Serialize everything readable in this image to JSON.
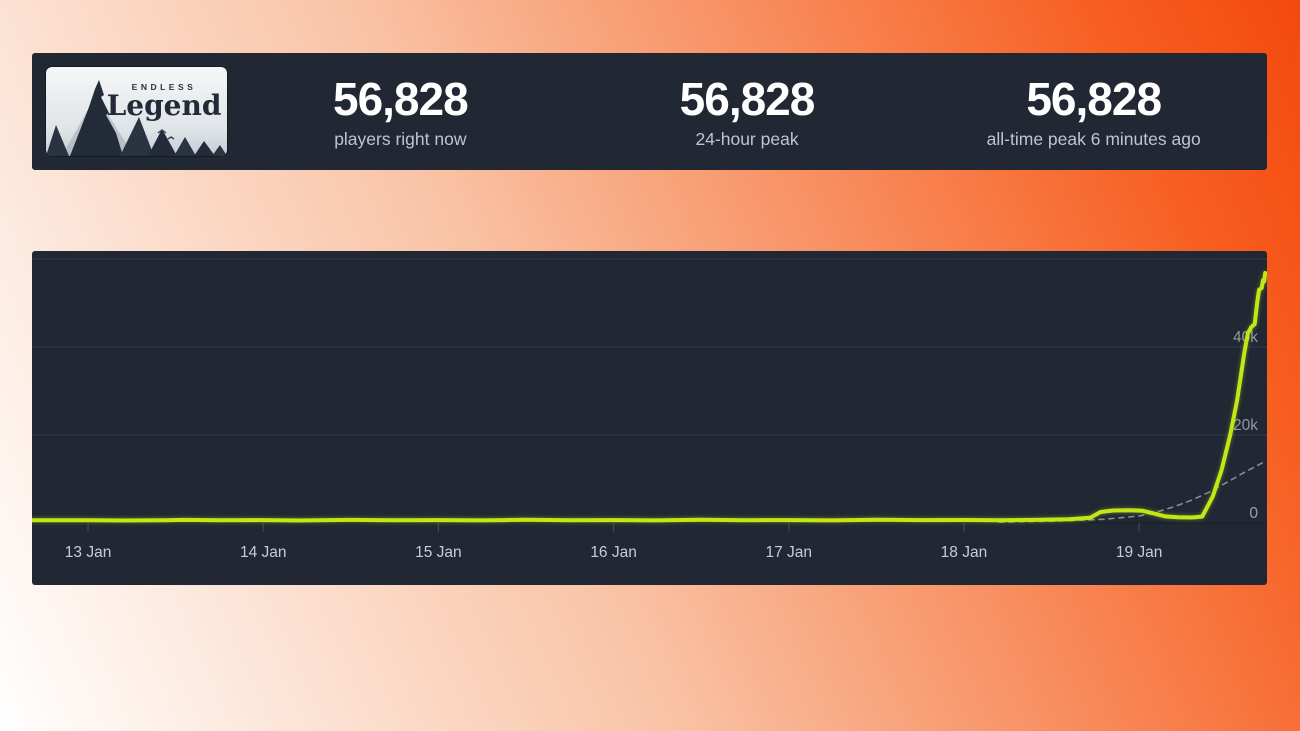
{
  "page": {
    "bg_gradient": [
      "#ffffff",
      "#f9c2a4",
      "#f4561b"
    ]
  },
  "header": {
    "logo": {
      "game": "Endless Legend",
      "title_small": "ENDLESS",
      "title_large": "Legend"
    },
    "stats": [
      {
        "value": "56,828",
        "label": "players right now"
      },
      {
        "value": "56,828",
        "label": "24-hour peak"
      },
      {
        "value": "56,828",
        "label": "all-time peak 6 minutes ago"
      }
    ]
  },
  "chart_data": {
    "type": "line",
    "x_tick_labels": [
      "13 Jan",
      "14 Jan",
      "15 Jan",
      "16 Jan",
      "17 Jan",
      "18 Jan",
      "19 Jan"
    ],
    "y_ticks": [
      {
        "value": 60000,
        "label": ""
      },
      {
        "value": 40000,
        "label": "40k"
      },
      {
        "value": 20000,
        "label": "20k"
      },
      {
        "value": 0,
        "label": "0"
      }
    ],
    "ylim": [
      0,
      62000
    ],
    "x_domain_days": [
      -0.32,
      6.73
    ],
    "grid": "horizontal",
    "legend": "none",
    "peak_value": 56828,
    "series": [
      {
        "name": "concurrent-players",
        "color": "#c4e617",
        "style": "solid",
        "points": [
          [
            -0.32,
            630
          ],
          [
            0,
            640
          ],
          [
            0.2,
            560
          ],
          [
            0.45,
            640
          ],
          [
            0.55,
            700
          ],
          [
            0.75,
            610
          ],
          [
            1,
            650
          ],
          [
            1.2,
            570
          ],
          [
            1.5,
            710
          ],
          [
            1.75,
            620
          ],
          [
            2,
            660
          ],
          [
            2.25,
            580
          ],
          [
            2.5,
            720
          ],
          [
            2.75,
            630
          ],
          [
            3,
            660
          ],
          [
            3.25,
            590
          ],
          [
            3.5,
            730
          ],
          [
            3.75,
            640
          ],
          [
            4,
            670
          ],
          [
            4.25,
            600
          ],
          [
            4.5,
            740
          ],
          [
            4.75,
            650
          ],
          [
            5,
            680
          ],
          [
            5.2,
            630
          ],
          [
            5.4,
            700
          ],
          [
            5.6,
            850
          ],
          [
            5.72,
            1200
          ],
          [
            5.78,
            2500
          ],
          [
            5.85,
            2850
          ],
          [
            5.95,
            2900
          ],
          [
            6.02,
            2780
          ],
          [
            6.08,
            2200
          ],
          [
            6.15,
            1500
          ],
          [
            6.22,
            1300
          ],
          [
            6.3,
            1250
          ],
          [
            6.36,
            1450
          ],
          [
            6.42,
            6000
          ],
          [
            6.47,
            12000
          ],
          [
            6.52,
            20000
          ],
          [
            6.56,
            28000
          ],
          [
            6.6,
            38500
          ],
          [
            6.62,
            43000
          ],
          [
            6.64,
            44500
          ],
          [
            6.66,
            45200
          ],
          [
            6.675,
            50500
          ],
          [
            6.685,
            53000
          ],
          [
            6.7,
            53400
          ],
          [
            6.708,
            55200
          ],
          [
            6.714,
            54900
          ],
          [
            6.72,
            56828
          ]
        ]
      },
      {
        "name": "trend-dashed",
        "color": "#858d95",
        "style": "dashed",
        "points": [
          [
            5.2,
            200
          ],
          [
            5.5,
            420
          ],
          [
            5.8,
            850
          ],
          [
            6,
            1600
          ],
          [
            6.1,
            2500
          ],
          [
            6.2,
            3700
          ],
          [
            6.3,
            5200
          ],
          [
            6.4,
            7000
          ],
          [
            6.5,
            9200
          ],
          [
            6.6,
            11500
          ],
          [
            6.72,
            14000
          ]
        ]
      }
    ]
  }
}
